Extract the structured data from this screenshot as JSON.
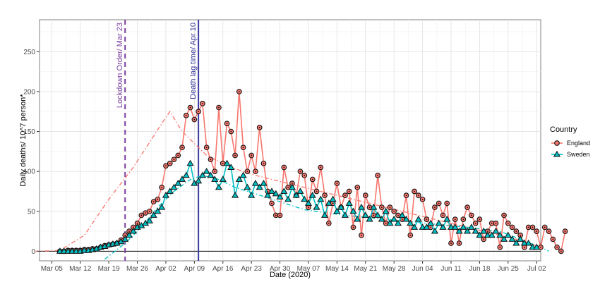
{
  "chart_data": {
    "type": "line",
    "xlabel": "Date (2020)",
    "ylabel": "Daily deaths/ 10^7 person*",
    "x_start": "2020-03-07",
    "xlim": [
      "2020-03-02",
      "2020-07-03"
    ],
    "ylim": [
      -12,
      290
    ],
    "x_ticks": [
      {
        "label": "Mar 05",
        "date": "2020-03-05"
      },
      {
        "label": "Mar 12",
        "date": "2020-03-12"
      },
      {
        "label": "Mar 19",
        "date": "2020-03-19"
      },
      {
        "label": "Mar 26",
        "date": "2020-03-26"
      },
      {
        "label": "Apr 02",
        "date": "2020-04-02"
      },
      {
        "label": "Apr 09",
        "date": "2020-04-09"
      },
      {
        "label": "Apr 16",
        "date": "2020-04-16"
      },
      {
        "label": "Apr 23",
        "date": "2020-04-23"
      },
      {
        "label": "Apr 30",
        "date": "2020-04-30"
      },
      {
        "label": "May 07",
        "date": "2020-05-07"
      },
      {
        "label": "May 14",
        "date": "2020-05-14"
      },
      {
        "label": "May 21",
        "date": "2020-05-21"
      },
      {
        "label": "May 28",
        "date": "2020-05-28"
      },
      {
        "label": "Jun 04",
        "date": "2020-06-04"
      },
      {
        "label": "Jun 11",
        "date": "2020-06-11"
      },
      {
        "label": "Jun 18",
        "date": "2020-06-18"
      },
      {
        "label": "Jun 25",
        "date": "2020-06-25"
      },
      {
        "label": "Jul 02",
        "date": "2020-07-02"
      }
    ],
    "y_ticks": [
      0,
      50,
      100,
      150,
      200,
      250
    ],
    "grid": true,
    "legend": {
      "title": "Country",
      "position": "right"
    },
    "annotations": [
      {
        "text": "Lockdown Order/ Mar 23",
        "date": "2020-03-23",
        "color": "#7b3fa0",
        "style": "dashed"
      },
      {
        "text": "Death lag time/ Apr 10",
        "date": "2020-04-10",
        "color": "#3a3aa0",
        "style": "solid"
      }
    ],
    "series": [
      {
        "name": "England",
        "color": "#f8766d",
        "marker": "circle",
        "values": [
          0,
          0,
          1,
          1,
          1,
          1,
          2,
          2,
          3,
          3,
          5,
          7,
          8,
          9,
          10,
          14,
          20,
          25,
          30,
          35,
          45,
          48,
          50,
          62,
          65,
          80,
          107,
          110,
          115,
          120,
          130,
          170,
          180,
          165,
          175,
          185,
          130,
          115,
          100,
          180,
          110,
          160,
          150,
          120,
          200,
          130,
          100,
          120,
          100,
          155,
          110,
          75,
          60,
          45,
          45,
          105,
          80,
          85,
          70,
          100,
          95,
          55,
          90,
          75,
          105,
          70,
          35,
          60,
          85,
          55,
          70,
          75,
          30,
          80,
          20,
          70,
          55,
          45,
          95,
          55,
          35,
          55,
          50,
          45,
          40,
          70,
          20,
          75,
          70,
          65,
          40,
          30,
          55,
          60,
          45,
          60,
          10,
          40,
          10,
          40,
          55,
          45,
          35,
          40,
          15,
          25,
          35,
          35,
          5,
          45,
          35,
          30,
          25,
          20,
          5,
          30,
          30,
          25,
          5,
          30,
          25,
          15,
          5,
          0,
          25
        ],
        "fit": [
          [
            -6,
            0
          ],
          [
            0,
            1
          ],
          [
            6,
            20
          ],
          [
            12,
            65
          ],
          [
            18,
            105
          ],
          [
            25,
            160
          ],
          [
            27,
            175
          ],
          [
            30,
            150
          ],
          [
            36,
            120
          ],
          [
            42,
            105
          ],
          [
            48,
            95
          ],
          [
            56,
            85
          ],
          [
            64,
            75
          ],
          [
            72,
            65
          ],
          [
            80,
            55
          ],
          [
            88,
            45
          ],
          [
            96,
            35
          ],
          [
            104,
            25
          ],
          [
            112,
            15
          ],
          [
            118,
            5
          ]
        ]
      },
      {
        "name": "Sweden",
        "color": "#00bfc4",
        "marker": "triangle",
        "values": [
          0,
          0,
          0,
          0,
          0,
          0,
          1,
          1,
          2,
          3,
          5,
          6,
          8,
          9,
          10,
          12,
          15,
          20,
          25,
          30,
          32,
          35,
          38,
          45,
          50,
          55,
          70,
          75,
          80,
          85,
          90,
          95,
          110,
          85,
          88,
          95,
          100,
          95,
          90,
          80,
          90,
          110,
          105,
          70,
          90,
          95,
          80,
          70,
          85,
          80,
          85,
          70,
          75,
          72,
          68,
          75,
          65,
          80,
          70,
          75,
          65,
          60,
          70,
          55,
          65,
          45,
          60,
          65,
          50,
          55,
          45,
          60,
          50,
          40,
          55,
          45,
          40,
          55,
          45,
          40,
          50,
          35,
          40,
          35,
          45,
          40,
          35,
          30,
          40,
          30,
          30,
          35,
          25,
          35,
          30,
          40,
          30,
          30,
          25,
          30,
          25,
          30,
          25,
          20,
          25,
          20,
          20,
          25,
          20,
          15,
          20,
          15,
          10,
          15,
          10,
          10,
          5,
          5
        ],
        "fit": [
          [
            11,
            -10
          ],
          [
            16,
            10
          ],
          [
            20,
            30
          ],
          [
            24,
            55
          ],
          [
            28,
            75
          ],
          [
            32,
            90
          ],
          [
            35,
            95
          ],
          [
            39,
            90
          ],
          [
            43,
            80
          ],
          [
            48,
            72
          ],
          [
            54,
            62
          ],
          [
            60,
            52
          ],
          [
            70,
            45
          ],
          [
            80,
            40
          ],
          [
            90,
            35
          ],
          [
            100,
            30
          ],
          [
            108,
            25
          ],
          [
            113,
            15
          ],
          [
            118,
            5
          ],
          [
            120,
            0
          ]
        ]
      }
    ]
  }
}
